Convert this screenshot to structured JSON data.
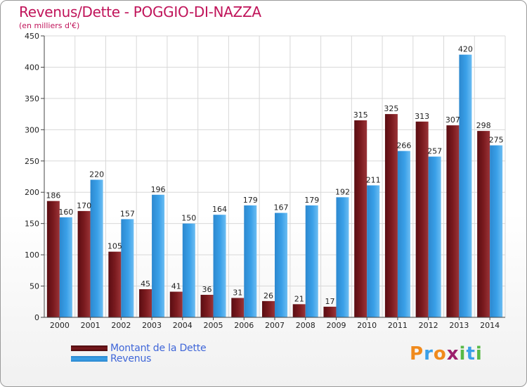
{
  "header": {
    "title": "Revenus/Dette - POGGIO-DI-NAZZA",
    "subtitle": "(en milliers d'€)"
  },
  "colors": {
    "dette": "#7a1a1e",
    "revenus": "#3aa0e8",
    "title": "#c0145a",
    "legend_text": "#3f66d8"
  },
  "legend": {
    "dette_label": "Montant de la Dette",
    "revenus_label": "Revenus",
    "position": "bottom-left"
  },
  "logo": {
    "text": "Proxiti",
    "letters": [
      "P",
      "r",
      "o",
      "x",
      "i",
      "t",
      "i"
    ],
    "letter_colors": [
      "#f08a1c",
      "#3aa0e8",
      "#f08a1c",
      "#9c1f6e",
      "#58b947",
      "#3aa0e8",
      "#58b947"
    ]
  },
  "chart_data": {
    "type": "bar",
    "categories": [
      "2000",
      "2001",
      "2002",
      "2003",
      "2004",
      "2005",
      "2006",
      "2007",
      "2008",
      "2009",
      "2010",
      "2011",
      "2012",
      "2013",
      "2014"
    ],
    "series": [
      {
        "name": "Montant de la Dette",
        "values": [
          186,
          170,
          105,
          45,
          41,
          36,
          31,
          26,
          21,
          17,
          315,
          325,
          313,
          307,
          298
        ]
      },
      {
        "name": "Revenus",
        "values": [
          160,
          220,
          157,
          196,
          150,
          164,
          179,
          167,
          179,
          192,
          211,
          266,
          257,
          420,
          275
        ]
      }
    ],
    "ylim": [
      0,
      450
    ],
    "yticks": [
      0,
      50,
      100,
      150,
      200,
      250,
      300,
      350,
      400,
      450
    ],
    "grid": true
  }
}
